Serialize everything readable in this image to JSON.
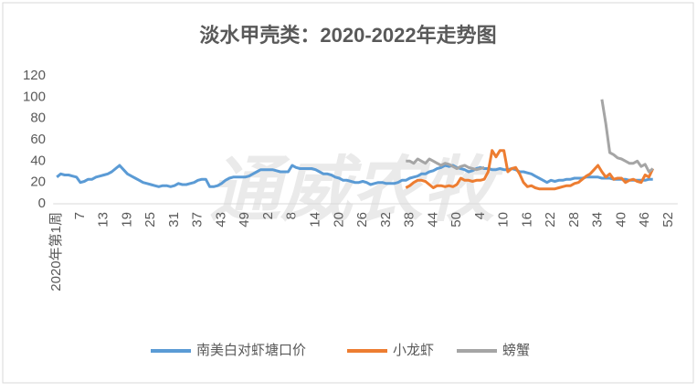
{
  "chart_data": {
    "type": "line",
    "title": "淡水甲壳类：2020-2022年走势图",
    "watermark": "通威农牧",
    "categories": [
      "2020年第1周",
      null,
      null,
      null,
      null,
      null,
      "7",
      null,
      null,
      null,
      null,
      null,
      "13",
      null,
      null,
      null,
      null,
      null,
      "19",
      null,
      null,
      null,
      null,
      null,
      "25",
      null,
      null,
      null,
      null,
      null,
      "31",
      null,
      null,
      null,
      null,
      null,
      "37",
      null,
      null,
      null,
      null,
      null,
      "43",
      null,
      null,
      null,
      null,
      null,
      "49",
      null,
      null,
      null,
      null,
      null,
      "2",
      null,
      null,
      null,
      null,
      null,
      "8",
      null,
      null,
      null,
      null,
      null,
      "14",
      null,
      null,
      null,
      null,
      null,
      "20",
      null,
      null,
      null,
      null,
      null,
      "26",
      null,
      null,
      null,
      null,
      null,
      "32",
      null,
      null,
      null,
      null,
      null,
      "38",
      null,
      null,
      null,
      null,
      null,
      "44",
      null,
      null,
      null,
      null,
      null,
      "50",
      null,
      null,
      null,
      null,
      null,
      "4",
      null,
      null,
      null,
      null,
      null,
      "10",
      null,
      null,
      null,
      null,
      null,
      "16",
      null,
      null,
      null,
      null,
      null,
      "22",
      null,
      null,
      null,
      null,
      null,
      "28",
      null,
      null,
      null,
      null,
      null,
      "34",
      null,
      null,
      null,
      null,
      null,
      "40",
      null,
      null,
      null,
      null,
      null,
      "46",
      null,
      null,
      null,
      null,
      null,
      "52"
    ],
    "series": [
      {
        "name": "南美白对虾塘口价",
        "color": "#5b9bd5",
        "values": [
          25,
          28,
          27,
          27,
          26,
          25,
          20,
          21,
          23,
          23,
          25,
          26,
          27,
          28,
          30,
          33,
          36,
          32,
          28,
          26,
          24,
          22,
          20,
          19,
          18,
          17,
          16,
          17,
          17,
          16,
          17,
          19,
          18,
          18,
          19,
          20,
          22,
          23,
          23,
          16,
          16,
          17,
          19,
          22,
          24,
          25,
          25,
          25,
          25,
          26,
          28,
          30,
          32,
          32,
          32,
          32,
          31,
          30,
          30,
          30,
          36,
          34,
          33,
          33,
          33,
          33,
          32,
          30,
          28,
          28,
          27,
          25,
          24,
          22,
          22,
          21,
          20,
          20,
          21,
          20,
          18,
          19,
          20,
          20,
          19,
          19,
          19,
          20,
          22,
          22,
          24,
          25,
          26,
          28,
          28,
          30,
          31,
          33,
          34,
          36,
          35,
          36,
          34,
          33,
          32,
          30,
          31,
          33,
          34,
          33,
          33,
          32,
          32,
          33,
          32,
          32,
          33,
          32,
          30,
          30,
          29,
          28,
          26,
          24,
          22,
          20,
          22,
          21,
          22,
          22,
          23,
          23,
          24,
          24,
          24,
          25,
          25,
          25,
          25,
          24,
          24,
          24,
          23,
          23,
          23,
          23,
          22,
          22,
          22,
          22,
          22,
          23,
          23,
          null,
          null,
          null,
          null
        ]
      },
      {
        "name": "小龙虾",
        "color": "#ed7d31",
        "values": [
          null,
          null,
          null,
          null,
          null,
          null,
          null,
          null,
          null,
          null,
          null,
          null,
          null,
          null,
          null,
          null,
          null,
          null,
          null,
          null,
          null,
          null,
          null,
          null,
          null,
          null,
          null,
          null,
          null,
          null,
          null,
          null,
          null,
          null,
          null,
          null,
          null,
          null,
          null,
          null,
          null,
          null,
          null,
          null,
          null,
          null,
          null,
          null,
          null,
          null,
          null,
          null,
          null,
          null,
          null,
          null,
          null,
          null,
          null,
          null,
          null,
          null,
          null,
          null,
          null,
          null,
          null,
          null,
          null,
          null,
          null,
          null,
          null,
          null,
          null,
          null,
          null,
          null,
          null,
          null,
          null,
          null,
          null,
          null,
          null,
          null,
          null,
          null,
          null,
          15,
          17,
          20,
          22,
          22,
          21,
          18,
          15,
          17,
          17,
          16,
          17,
          16,
          18,
          24,
          22,
          22,
          21,
          22,
          22,
          23,
          30,
          50,
          44,
          50,
          50,
          30,
          33,
          34,
          28,
          20,
          16,
          17,
          15,
          14,
          14,
          14,
          14,
          14,
          15,
          16,
          17,
          17,
          19,
          20,
          23,
          26,
          28,
          32,
          36,
          30,
          25,
          28,
          23,
          24,
          24,
          20,
          22,
          23,
          21,
          20,
          27,
          25,
          33,
          null,
          null,
          null,
          null
        ]
      },
      {
        "name": "螃蟹",
        "color": "#a5a5a5",
        "values": [
          null,
          null,
          null,
          null,
          null,
          null,
          null,
          null,
          null,
          null,
          null,
          null,
          null,
          null,
          null,
          null,
          null,
          null,
          null,
          null,
          null,
          null,
          null,
          null,
          null,
          null,
          null,
          null,
          null,
          null,
          null,
          null,
          null,
          null,
          null,
          null,
          null,
          null,
          null,
          null,
          null,
          null,
          null,
          null,
          null,
          null,
          null,
          null,
          null,
          null,
          null,
          null,
          null,
          null,
          null,
          null,
          null,
          null,
          null,
          null,
          null,
          null,
          null,
          null,
          null,
          null,
          null,
          null,
          null,
          null,
          null,
          null,
          null,
          null,
          null,
          null,
          null,
          null,
          null,
          null,
          null,
          null,
          null,
          null,
          null,
          null,
          null,
          null,
          null,
          40,
          40,
          38,
          42,
          40,
          38,
          42,
          40,
          38,
          36,
          38,
          37,
          35,
          33,
          35,
          36,
          34,
          33,
          32,
          33,
          34,
          null,
          null,
          null,
          null,
          null,
          null,
          null,
          null,
          null,
          null,
          null,
          null,
          null,
          null,
          null,
          null,
          null,
          null,
          null,
          null,
          null,
          null,
          null,
          null,
          null,
          null,
          null,
          null,
          null,
          98,
          75,
          48,
          46,
          43,
          42,
          40,
          38,
          38,
          40,
          35,
          37,
          30,
          33,
          null,
          null,
          null,
          null
        ]
      }
    ],
    "ylim": [
      0,
      120
    ],
    "yticks": [
      0,
      20,
      40,
      60,
      80,
      100,
      120
    ],
    "legend": "bottom"
  }
}
